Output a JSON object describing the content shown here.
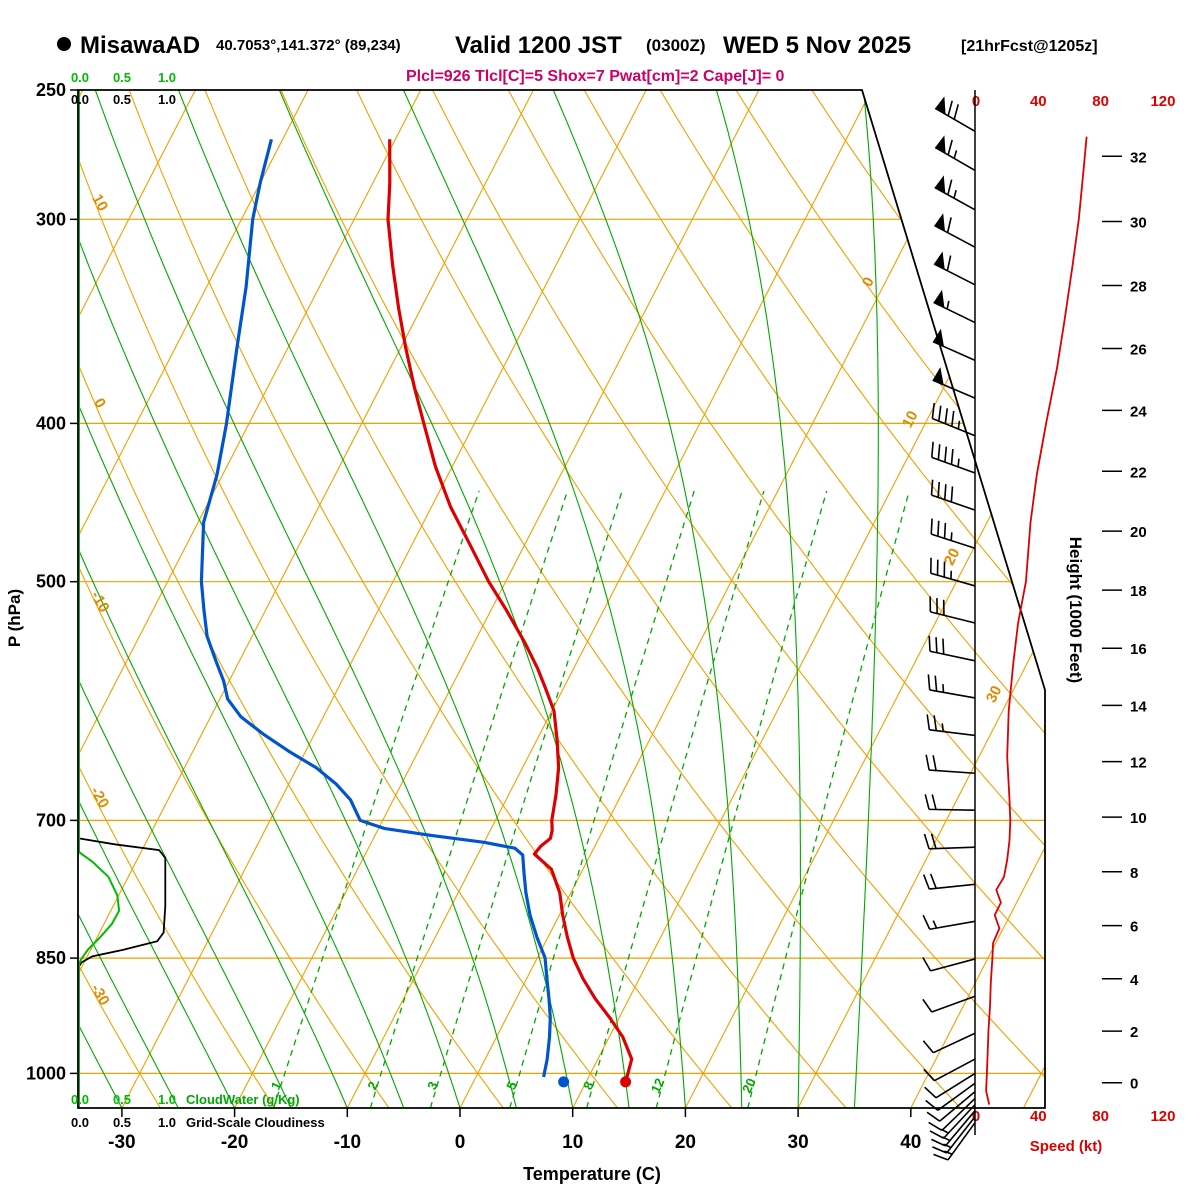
{
  "header": {
    "station": "MisawaAD",
    "coords": "40.7053°,141.372° (89,234)",
    "valid": "Valid 1200 JST",
    "valid_z": "(0300Z)",
    "date": "WED 5 Nov 2025",
    "fcst": "[21hrFcst@1205z]",
    "params": "Plcl=926 Tlcl[C]=5 Shox=7 Pwat[cm]=2 Cape[J]= 0"
  },
  "axis_titles": {
    "pressure": "P (hPa)",
    "temperature": "Temperature (C)",
    "height": "Height (1000 Feet)",
    "speed": "Speed (kt)"
  },
  "legend": {
    "cloudwater_label": "CloudWater (g/Kg)",
    "cloudiness_label": "Grid-Scale Cloudiness",
    "scale_ticks": [
      "0.0",
      "0.5",
      "1.0"
    ]
  },
  "colors": {
    "grid_orange": "#f0a000",
    "label_orange": "#e08a00",
    "green": "#00a800",
    "green_bright": "#00bb00",
    "temp_red": "#dd0000",
    "dew_blue": "#0055cc",
    "speed_red": "#dd0000",
    "params_magenta": "#cc0066",
    "black": "#000000"
  },
  "chart_data": {
    "type": "skewt-log-p-sounding",
    "pressure_range": [
      250,
      1050
    ],
    "pressure_ticks": [
      250,
      300,
      400,
      500,
      700,
      850,
      1000
    ],
    "pressure_gridlines": [
      300,
      400,
      500,
      700,
      850,
      1000
    ],
    "temp_ticks": [
      -30,
      -20,
      -10,
      0,
      10,
      20,
      30,
      40
    ],
    "height_ticks_kft": [
      0,
      2,
      4,
      6,
      8,
      10,
      12,
      14,
      16,
      18,
      20,
      22,
      24,
      26,
      28,
      30,
      32
    ],
    "speed_ticks": [
      0,
      40,
      80,
      120
    ],
    "isotherm_label_values": [
      0,
      10,
      20,
      30
    ],
    "dry_adiabat_label_values": [
      10,
      0,
      -10,
      -20,
      -30
    ],
    "mixing_ratio_lines": [
      1,
      2,
      3,
      5,
      8,
      12,
      20
    ],
    "temperature_c": [
      [
        268,
        -50.5
      ],
      [
        285,
        -48.5
      ],
      [
        300,
        -47
      ],
      [
        320,
        -44.5
      ],
      [
        340,
        -42
      ],
      [
        360,
        -39.5
      ],
      [
        380,
        -37
      ],
      [
        400,
        -34.5
      ],
      [
        425,
        -31.5
      ],
      [
        450,
        -28.3
      ],
      [
        475,
        -24.8
      ],
      [
        500,
        -21.5
      ],
      [
        520,
        -18.7
      ],
      [
        545,
        -15.5
      ],
      [
        565,
        -13.2
      ],
      [
        580,
        -11.7
      ],
      [
        600,
        -9.8
      ],
      [
        625,
        -8.2
      ],
      [
        650,
        -6.8
      ],
      [
        675,
        -5.8
      ],
      [
        700,
        -5.0
      ],
      [
        710,
        -4.5
      ],
      [
        718,
        -4.3
      ],
      [
        726,
        -4.8
      ],
      [
        734,
        -5.0
      ],
      [
        750,
        -2.8
      ],
      [
        775,
        -1.0
      ],
      [
        800,
        0.3
      ],
      [
        825,
        1.7
      ],
      [
        850,
        3.2
      ],
      [
        875,
        5.0
      ],
      [
        900,
        7.0
      ],
      [
        925,
        9.2
      ],
      [
        950,
        11.2
      ],
      [
        980,
        13.0
      ],
      [
        1005,
        13.4
      ]
    ],
    "dewpoint_c": [
      [
        268,
        -61
      ],
      [
        285,
        -60
      ],
      [
        300,
        -59
      ],
      [
        330,
        -56.5
      ],
      [
        360,
        -54.5
      ],
      [
        400,
        -52
      ],
      [
        430,
        -50.5
      ],
      [
        460,
        -49.5
      ],
      [
        500,
        -47
      ],
      [
        520,
        -45.5
      ],
      [
        540,
        -44
      ],
      [
        560,
        -42
      ],
      [
        575,
        -40.5
      ],
      [
        590,
        -39.3
      ],
      [
        605,
        -37.3
      ],
      [
        620,
        -34.5
      ],
      [
        635,
        -31.5
      ],
      [
        650,
        -28.3
      ],
      [
        665,
        -25.8
      ],
      [
        680,
        -23.8
      ],
      [
        700,
        -22
      ],
      [
        708,
        -19.5
      ],
      [
        715,
        -15
      ],
      [
        722,
        -10
      ],
      [
        728,
        -7
      ],
      [
        735,
        -6
      ],
      [
        755,
        -5
      ],
      [
        775,
        -4
      ],
      [
        800,
        -2.6
      ],
      [
        825,
        -1
      ],
      [
        850,
        0.7
      ],
      [
        875,
        1.8
      ],
      [
        900,
        2.9
      ],
      [
        925,
        3.9
      ],
      [
        950,
        4.7
      ],
      [
        980,
        5.5
      ],
      [
        1005,
        6.0
      ]
    ],
    "surface_temp": [
      1012,
      13.5
    ],
    "surface_dewp": [
      1012,
      8.0
    ],
    "wind_barbs": [
      [
        265,
        300,
        70
      ],
      [
        280,
        300,
        67
      ],
      [
        296,
        299,
        64
      ],
      [
        312,
        298,
        61
      ],
      [
        329,
        297,
        58
      ],
      [
        347,
        296,
        55
      ],
      [
        366,
        294,
        52
      ],
      [
        386,
        293,
        49
      ],
      [
        407,
        292,
        46
      ],
      [
        429,
        290,
        43
      ],
      [
        452,
        289,
        40
      ],
      [
        477,
        288,
        37
      ],
      [
        503,
        286,
        34
      ],
      [
        530,
        284,
        31
      ],
      [
        559,
        282,
        28
      ],
      [
        589,
        280,
        25
      ],
      [
        621,
        277,
        23
      ],
      [
        655,
        274,
        22
      ],
      [
        690,
        271,
        22
      ],
      [
        727,
        268,
        21
      ],
      [
        766,
        264,
        19
      ],
      [
        807,
        260,
        16
      ],
      [
        851,
        255,
        12
      ],
      [
        897,
        250,
        10
      ],
      [
        945,
        245,
        9
      ],
      [
        980,
        242,
        8
      ],
      [
        1000,
        238,
        9
      ],
      [
        1014,
        234,
        10
      ],
      [
        1026,
        230,
        11
      ],
      [
        1036,
        226,
        12
      ],
      [
        1045,
        223,
        13
      ],
      [
        1054,
        220,
        14
      ],
      [
        1063,
        218,
        15
      ],
      [
        1072,
        216,
        15
      ]
    ],
    "wind_speed_profile_kt": [
      [
        267,
        71
      ],
      [
        280,
        69
      ],
      [
        300,
        66
      ],
      [
        320,
        62
      ],
      [
        345,
        57
      ],
      [
        370,
        52
      ],
      [
        400,
        45
      ],
      [
        430,
        39
      ],
      [
        460,
        35
      ],
      [
        500,
        32
      ],
      [
        530,
        27
      ],
      [
        560,
        24
      ],
      [
        600,
        21
      ],
      [
        640,
        20
      ],
      [
        680,
        21.5
      ],
      [
        700,
        22
      ],
      [
        720,
        21.5
      ],
      [
        740,
        20
      ],
      [
        758,
        18
      ],
      [
        772,
        13
      ],
      [
        786,
        16
      ],
      [
        800,
        12
      ],
      [
        815,
        15
      ],
      [
        832,
        11
      ],
      [
        850,
        10.5
      ],
      [
        880,
        9.5
      ],
      [
        910,
        9
      ],
      [
        940,
        8
      ],
      [
        970,
        7.5
      ],
      [
        1000,
        7
      ],
      [
        1025,
        6.5
      ],
      [
        1045,
        8.5
      ]
    ],
    "cloudiness_profile": [
      [
        250,
        0
      ],
      [
        718,
        0
      ],
      [
        724,
        0.4
      ],
      [
        730,
        0.9
      ],
      [
        738,
        0.97
      ],
      [
        790,
        0.97
      ],
      [
        820,
        0.95
      ],
      [
        830,
        0.88
      ],
      [
        840,
        0.5
      ],
      [
        848,
        0.15
      ],
      [
        855,
        0.03
      ],
      [
        860,
        0
      ],
      [
        1050,
        0
      ]
    ],
    "cloudwater_profile_gkg": [
      [
        250,
        0
      ],
      [
        732,
        0
      ],
      [
        742,
        0.15
      ],
      [
        758,
        0.33
      ],
      [
        778,
        0.43
      ],
      [
        795,
        0.45
      ],
      [
        810,
        0.37
      ],
      [
        825,
        0.24
      ],
      [
        840,
        0.1
      ],
      [
        852,
        0.02
      ],
      [
        858,
        0
      ],
      [
        1050,
        0
      ]
    ]
  }
}
